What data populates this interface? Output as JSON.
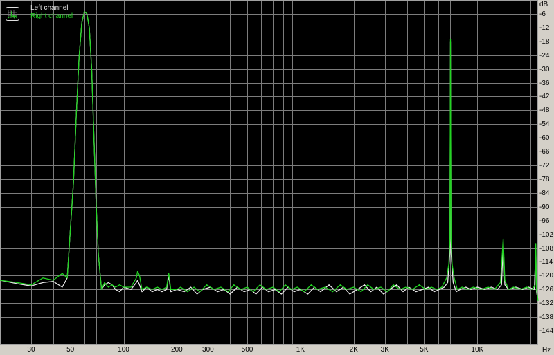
{
  "chart_data": {
    "type": "line",
    "title": "",
    "xlabel": "Hz",
    "ylabel": "dB",
    "x_scale": "log",
    "xlim": [
      20,
      22050
    ],
    "ylim": [
      -150,
      0
    ],
    "grid": true,
    "legend_placement": "top-left",
    "x_ticks": [
      {
        "v": 30,
        "label": "30"
      },
      {
        "v": 50,
        "label": "50"
      },
      {
        "v": 100,
        "label": "100"
      },
      {
        "v": 200,
        "label": "200"
      },
      {
        "v": 300,
        "label": "300"
      },
      {
        "v": 500,
        "label": "500"
      },
      {
        "v": 1000,
        "label": "1K"
      },
      {
        "v": 2000,
        "label": "2K"
      },
      {
        "v": 3000,
        "label": "3K"
      },
      {
        "v": 5000,
        "label": "5K"
      },
      {
        "v": 10000,
        "label": "10K"
      }
    ],
    "y_ticks": [
      -6,
      -12,
      -18,
      -24,
      -30,
      -36,
      -42,
      -48,
      -54,
      -60,
      -66,
      -72,
      -78,
      -84,
      -90,
      -96,
      -102,
      -108,
      -114,
      -120,
      -126,
      -132,
      -138,
      -144
    ],
    "colors": {
      "background": "#000000",
      "grid": "#7c7c7c",
      "left": "#e8e8e8",
      "right": "#22d422"
    },
    "series": [
      {
        "name": "Left channel",
        "color": "#e8e8e8",
        "points": [
          [
            20,
            -122
          ],
          [
            25,
            -123.5
          ],
          [
            30,
            -124.5
          ],
          [
            35,
            -123
          ],
          [
            40,
            -122.5
          ],
          [
            45,
            -125
          ],
          [
            48,
            -121
          ],
          [
            50,
            -100
          ],
          [
            52,
            -80
          ],
          [
            54,
            -50
          ],
          [
            56,
            -25
          ],
          [
            58,
            -10
          ],
          [
            60,
            -5
          ],
          [
            62,
            -6
          ],
          [
            64,
            -12
          ],
          [
            66,
            -30
          ],
          [
            68,
            -60
          ],
          [
            70,
            -90
          ],
          [
            72,
            -111
          ],
          [
            75,
            -126
          ],
          [
            78,
            -124
          ],
          [
            82,
            -123
          ],
          [
            86,
            -124
          ],
          [
            90,
            -126
          ],
          [
            95,
            -127
          ],
          [
            100,
            -125
          ],
          [
            110,
            -126
          ],
          [
            118,
            -123
          ],
          [
            120,
            -122
          ],
          [
            123,
            -124
          ],
          [
            127,
            -127
          ],
          [
            135,
            -125
          ],
          [
            145,
            -127
          ],
          [
            155,
            -126
          ],
          [
            165,
            -127
          ],
          [
            175,
            -126
          ],
          [
            180,
            -120
          ],
          [
            185,
            -127
          ],
          [
            200,
            -126
          ],
          [
            220,
            -127
          ],
          [
            240,
            -125
          ],
          [
            260,
            -128
          ],
          [
            280,
            -126
          ],
          [
            310,
            -125
          ],
          [
            340,
            -127
          ],
          [
            370,
            -126
          ],
          [
            400,
            -128
          ],
          [
            440,
            -125
          ],
          [
            480,
            -127
          ],
          [
            520,
            -126
          ],
          [
            560,
            -128
          ],
          [
            610,
            -125
          ],
          [
            660,
            -127
          ],
          [
            720,
            -126
          ],
          [
            780,
            -128
          ],
          [
            850,
            -125
          ],
          [
            920,
            -127
          ],
          [
            1000,
            -126
          ],
          [
            1100,
            -128
          ],
          [
            1200,
            -125
          ],
          [
            1300,
            -127
          ],
          [
            1450,
            -124
          ],
          [
            1600,
            -127
          ],
          [
            1750,
            -125
          ],
          [
            1900,
            -128
          ],
          [
            2100,
            -126
          ],
          [
            2300,
            -124
          ],
          [
            2500,
            -127
          ],
          [
            2700,
            -125
          ],
          [
            2950,
            -128
          ],
          [
            3200,
            -126
          ],
          [
            3500,
            -124
          ],
          [
            3800,
            -127
          ],
          [
            4100,
            -125
          ],
          [
            4500,
            -127
          ],
          [
            4900,
            -126
          ],
          [
            5300,
            -125
          ],
          [
            5700,
            -127
          ],
          [
            6100,
            -126
          ],
          [
            6500,
            -125
          ],
          [
            6800,
            -123
          ],
          [
            7000,
            -110
          ],
          [
            7050,
            -18
          ],
          [
            7100,
            -110
          ],
          [
            7300,
            -123
          ],
          [
            7600,
            -127
          ],
          [
            8000,
            -126
          ],
          [
            8600,
            -125
          ],
          [
            9200,
            -126
          ],
          [
            10000,
            -125
          ],
          [
            11000,
            -126
          ],
          [
            12000,
            -125
          ],
          [
            13000,
            -126
          ],
          [
            13700,
            -124
          ],
          [
            14000,
            -106
          ],
          [
            14300,
            -124
          ],
          [
            15000,
            -126
          ],
          [
            16500,
            -125
          ],
          [
            18000,
            -126
          ],
          [
            19500,
            -125
          ],
          [
            21000,
            -126
          ],
          [
            21400,
            -108
          ],
          [
            21600,
            -127
          ],
          [
            22050,
            -131
          ]
        ]
      },
      {
        "name": "Right channel",
        "color": "#22d422",
        "points": [
          [
            20,
            -122
          ],
          [
            25,
            -123
          ],
          [
            30,
            -124
          ],
          [
            35,
            -121
          ],
          [
            40,
            -122
          ],
          [
            45,
            -119
          ],
          [
            48,
            -121
          ],
          [
            50,
            -100
          ],
          [
            52,
            -80
          ],
          [
            54,
            -50
          ],
          [
            56,
            -25
          ],
          [
            58,
            -10
          ],
          [
            60,
            -5
          ],
          [
            62,
            -6
          ],
          [
            64,
            -12
          ],
          [
            66,
            -30
          ],
          [
            68,
            -60
          ],
          [
            70,
            -90
          ],
          [
            72,
            -111
          ],
          [
            75,
            -126
          ],
          [
            78,
            -123
          ],
          [
            82,
            -125
          ],
          [
            86,
            -124
          ],
          [
            90,
            -125
          ],
          [
            95,
            -124
          ],
          [
            100,
            -125
          ],
          [
            110,
            -125
          ],
          [
            118,
            -121
          ],
          [
            120,
            -118
          ],
          [
            123,
            -120
          ],
          [
            127,
            -126
          ],
          [
            135,
            -125
          ],
          [
            145,
            -126
          ],
          [
            155,
            -125
          ],
          [
            165,
            -126
          ],
          [
            175,
            -125
          ],
          [
            180,
            -119
          ],
          [
            185,
            -126
          ],
          [
            200,
            -126
          ],
          [
            210,
            -125
          ],
          [
            230,
            -127
          ],
          [
            250,
            -125
          ],
          [
            270,
            -127
          ],
          [
            295,
            -124
          ],
          [
            325,
            -126
          ],
          [
            355,
            -125
          ],
          [
            390,
            -127
          ],
          [
            420,
            -124
          ],
          [
            460,
            -126
          ],
          [
            500,
            -125
          ],
          [
            540,
            -127
          ],
          [
            590,
            -124
          ],
          [
            640,
            -126
          ],
          [
            700,
            -125
          ],
          [
            760,
            -127
          ],
          [
            820,
            -124
          ],
          [
            890,
            -126
          ],
          [
            960,
            -125
          ],
          [
            1050,
            -127
          ],
          [
            1150,
            -124
          ],
          [
            1250,
            -126
          ],
          [
            1380,
            -125
          ],
          [
            1520,
            -127
          ],
          [
            1680,
            -124
          ],
          [
            1830,
            -126
          ],
          [
            2000,
            -125
          ],
          [
            2200,
            -127
          ],
          [
            2400,
            -124
          ],
          [
            2600,
            -126
          ],
          [
            2850,
            -125
          ],
          [
            3100,
            -127
          ],
          [
            3350,
            -124
          ],
          [
            3650,
            -126
          ],
          [
            3950,
            -125
          ],
          [
            4300,
            -126
          ],
          [
            4700,
            -124
          ],
          [
            5100,
            -126
          ],
          [
            5500,
            -125
          ],
          [
            5900,
            -126
          ],
          [
            6300,
            -125
          ],
          [
            6700,
            -121
          ],
          [
            6900,
            -115
          ],
          [
            7000,
            -104
          ],
          [
            7050,
            -17
          ],
          [
            7100,
            -104
          ],
          [
            7200,
            -115
          ],
          [
            7400,
            -121
          ],
          [
            7700,
            -126
          ],
          [
            8200,
            -125
          ],
          [
            8800,
            -126
          ],
          [
            9500,
            -125
          ],
          [
            10500,
            -126
          ],
          [
            11500,
            -125
          ],
          [
            12500,
            -126
          ],
          [
            13500,
            -123
          ],
          [
            14000,
            -104
          ],
          [
            14300,
            -122
          ],
          [
            15000,
            -126
          ],
          [
            16000,
            -125
          ],
          [
            17500,
            -126
          ],
          [
            19000,
            -125
          ],
          [
            20500,
            -126
          ],
          [
            21200,
            -124
          ],
          [
            21400,
            -106
          ],
          [
            21600,
            -126
          ],
          [
            22050,
            -131
          ]
        ]
      }
    ]
  }
}
